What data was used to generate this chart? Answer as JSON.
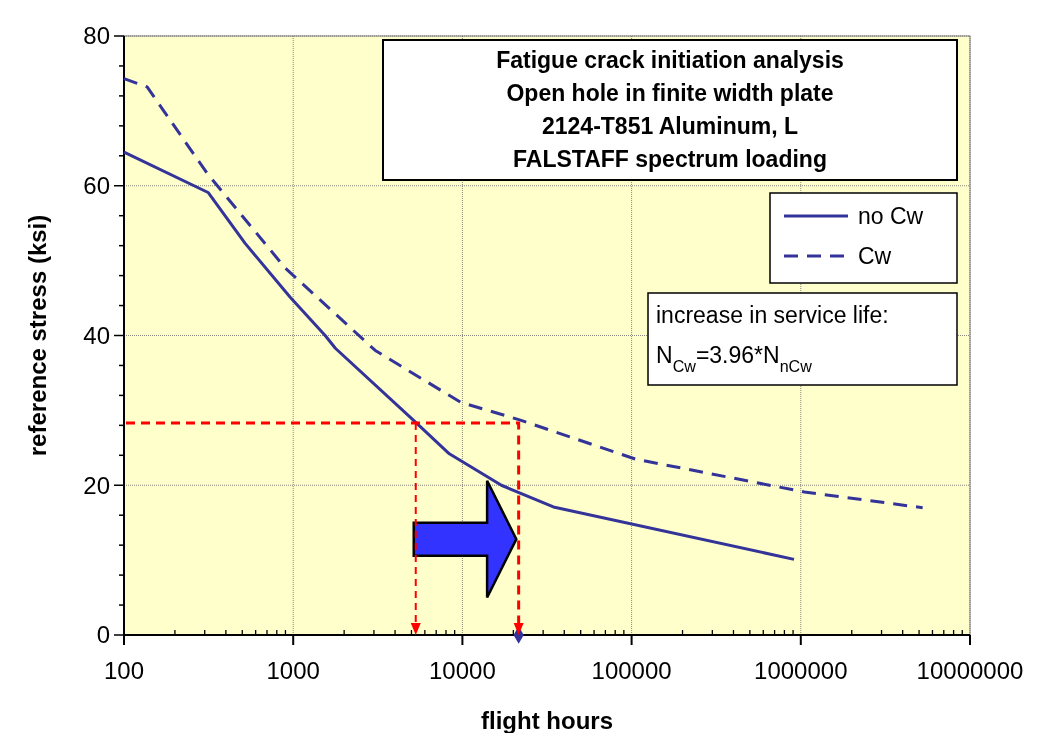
{
  "chart_data": {
    "type": "line",
    "title": "Fatigue crack initiation analysis",
    "subtitle": "Open hole in finite width plate\n2124-T851 Aluminum, L\nFALSTAFF spectrum loading",
    "xlabel": "flight hours",
    "ylabel": "reference stress (ksi)",
    "log": "x",
    "xlim": [
      100,
      10000000
    ],
    "xticks": [
      100,
      1000,
      10000,
      100000,
      1000000,
      10000000
    ],
    "ylim": [
      0,
      80
    ],
    "yticks": [
      0,
      {
        "value": 4,
        "label": null
      },
      {
        "value": 8,
        "label": null
      },
      {
        "value": 12,
        "label": null
      },
      {
        "value": 16,
        "label": null
      },
      20,
      {
        "value": 24,
        "label": null
      },
      {
        "value": 28,
        "label": null
      },
      {
        "value": 32,
        "label": null
      },
      {
        "value": 36,
        "label": null
      },
      40,
      {
        "value": 44,
        "label": null
      },
      {
        "value": 48,
        "label": null
      },
      {
        "value": 52,
        "label": null
      },
      {
        "value": 56,
        "label": null
      },
      60,
      {
        "value": 64,
        "label": null
      },
      {
        "value": 68,
        "label": null
      },
      {
        "value": 72,
        "label": null
      },
      {
        "value": 76,
        "label": null
      },
      80
    ],
    "grid": true,
    "legend": "top right",
    "annotations": [
      "increase in service life:\nN$_{Cw}$=3.96*N$_{nCw}$"
    ],
    "series": [
      {
        "name": "no Cw",
        "color": "#333399",
        "line_style": "solid",
        "x": [
          100,
          314,
          520,
          960,
          1545,
          1775,
          5130,
          8370,
          17000,
          34500,
          912000
        ],
        "values": [
          64.5,
          59.1,
          52.3,
          45.1,
          40.0,
          38.3,
          28.7,
          24.2,
          20.0,
          17.1,
          10.1
        ]
      },
      {
        "name": "Cw",
        "color": "#333399",
        "line_style": "dashed",
        "x": [
          100,
          137,
          309,
          898,
          3055,
          9720,
          22000,
          105000,
          1050000,
          5250000
        ],
        "values": [
          74.3,
          73.2,
          61.7,
          49.0,
          38.0,
          31.1,
          28.7,
          23.5,
          19.1,
          17.0
        ]
      },
      {
        "type": "scatter",
        "marker": "diamond",
        "color": "#333399",
        "x": [
          21500
        ],
        "values": [
          0
        ]
      }
    ]
  }
}
